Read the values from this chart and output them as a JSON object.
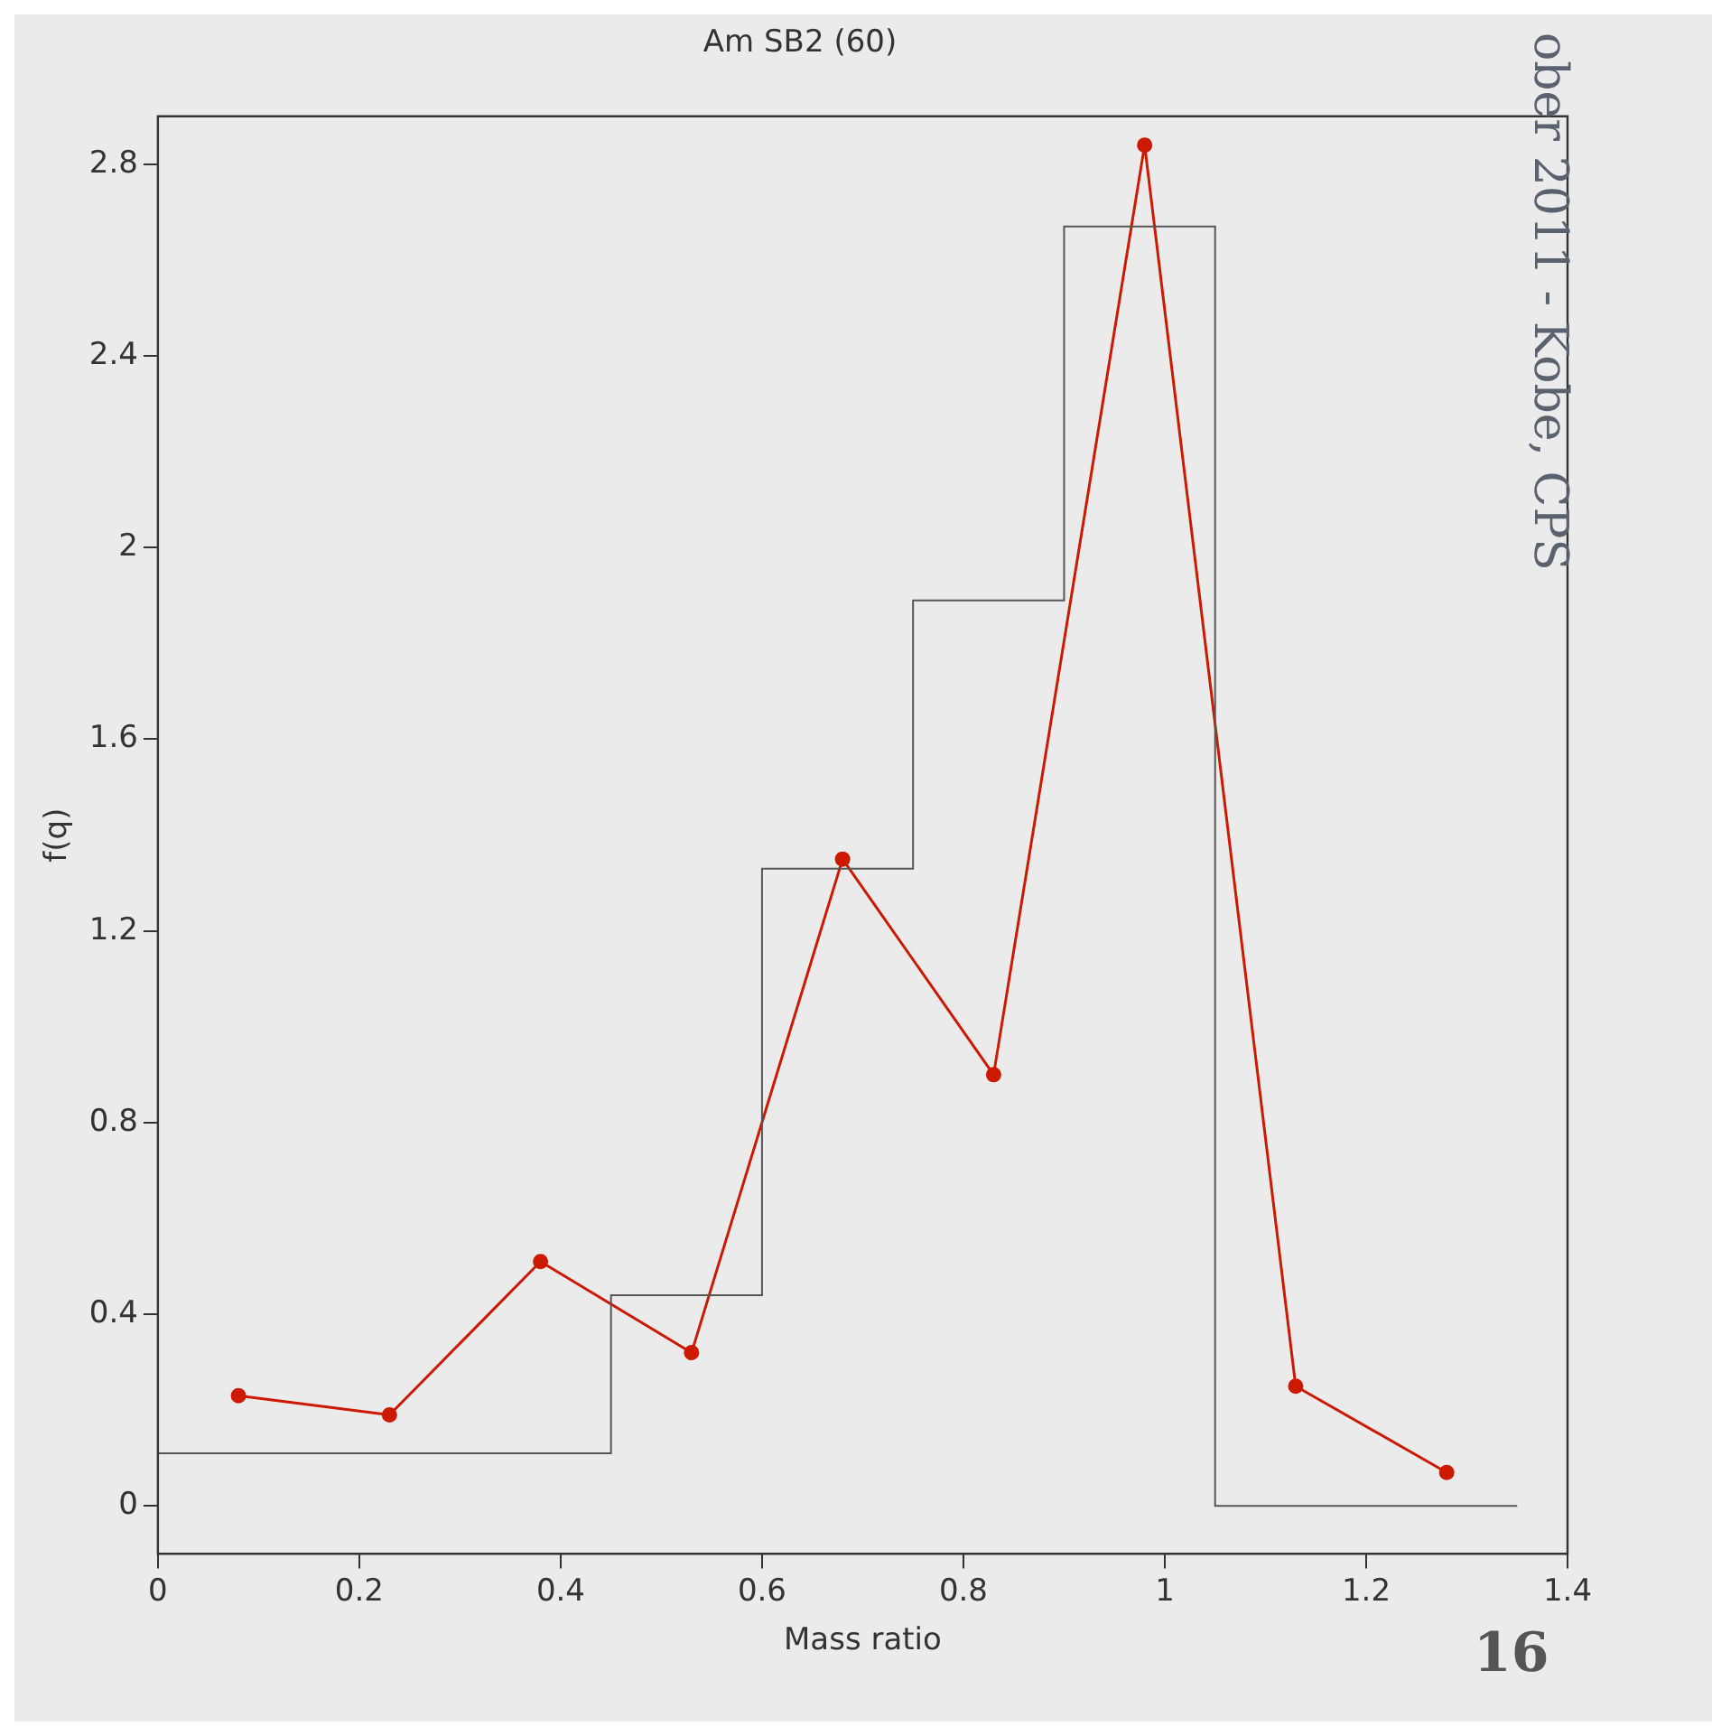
{
  "chart_data": {
    "type": "line",
    "title": "Am SB2 (60)",
    "xlabel": "Mass ratio",
    "ylabel": "f(q)",
    "xlim": [
      0,
      1.4
    ],
    "xticks": [
      0,
      0.2,
      0.4,
      0.6,
      0.8,
      1,
      1.2,
      1.4
    ],
    "ylim": [
      -0.1,
      2.9
    ],
    "yticks": [
      0,
      0.4,
      0.8,
      1.2,
      1.6,
      2,
      2.4,
      2.8
    ],
    "annotations": [
      "ober 2011 - Kobe, CPS",
      "16"
    ],
    "series": [
      {
        "type": "histogram",
        "color": "#555555",
        "bins": [
          0,
          0.45,
          0.6,
          0.75,
          0.9,
          1.05,
          1.35
        ],
        "values": [
          0.11,
          0.44,
          1.33,
          1.89,
          2.67,
          0
        ]
      },
      {
        "type": "line",
        "color": "#cc1a00",
        "marker": "circle",
        "x": [
          0.08,
          0.23,
          0.38,
          0.53,
          0.68,
          0.83,
          0.98,
          1.13,
          1.28
        ],
        "values": [
          0.23,
          0.19,
          0.51,
          0.32,
          1.35,
          0.9,
          2.84,
          0.25,
          0.07
        ]
      }
    ]
  }
}
